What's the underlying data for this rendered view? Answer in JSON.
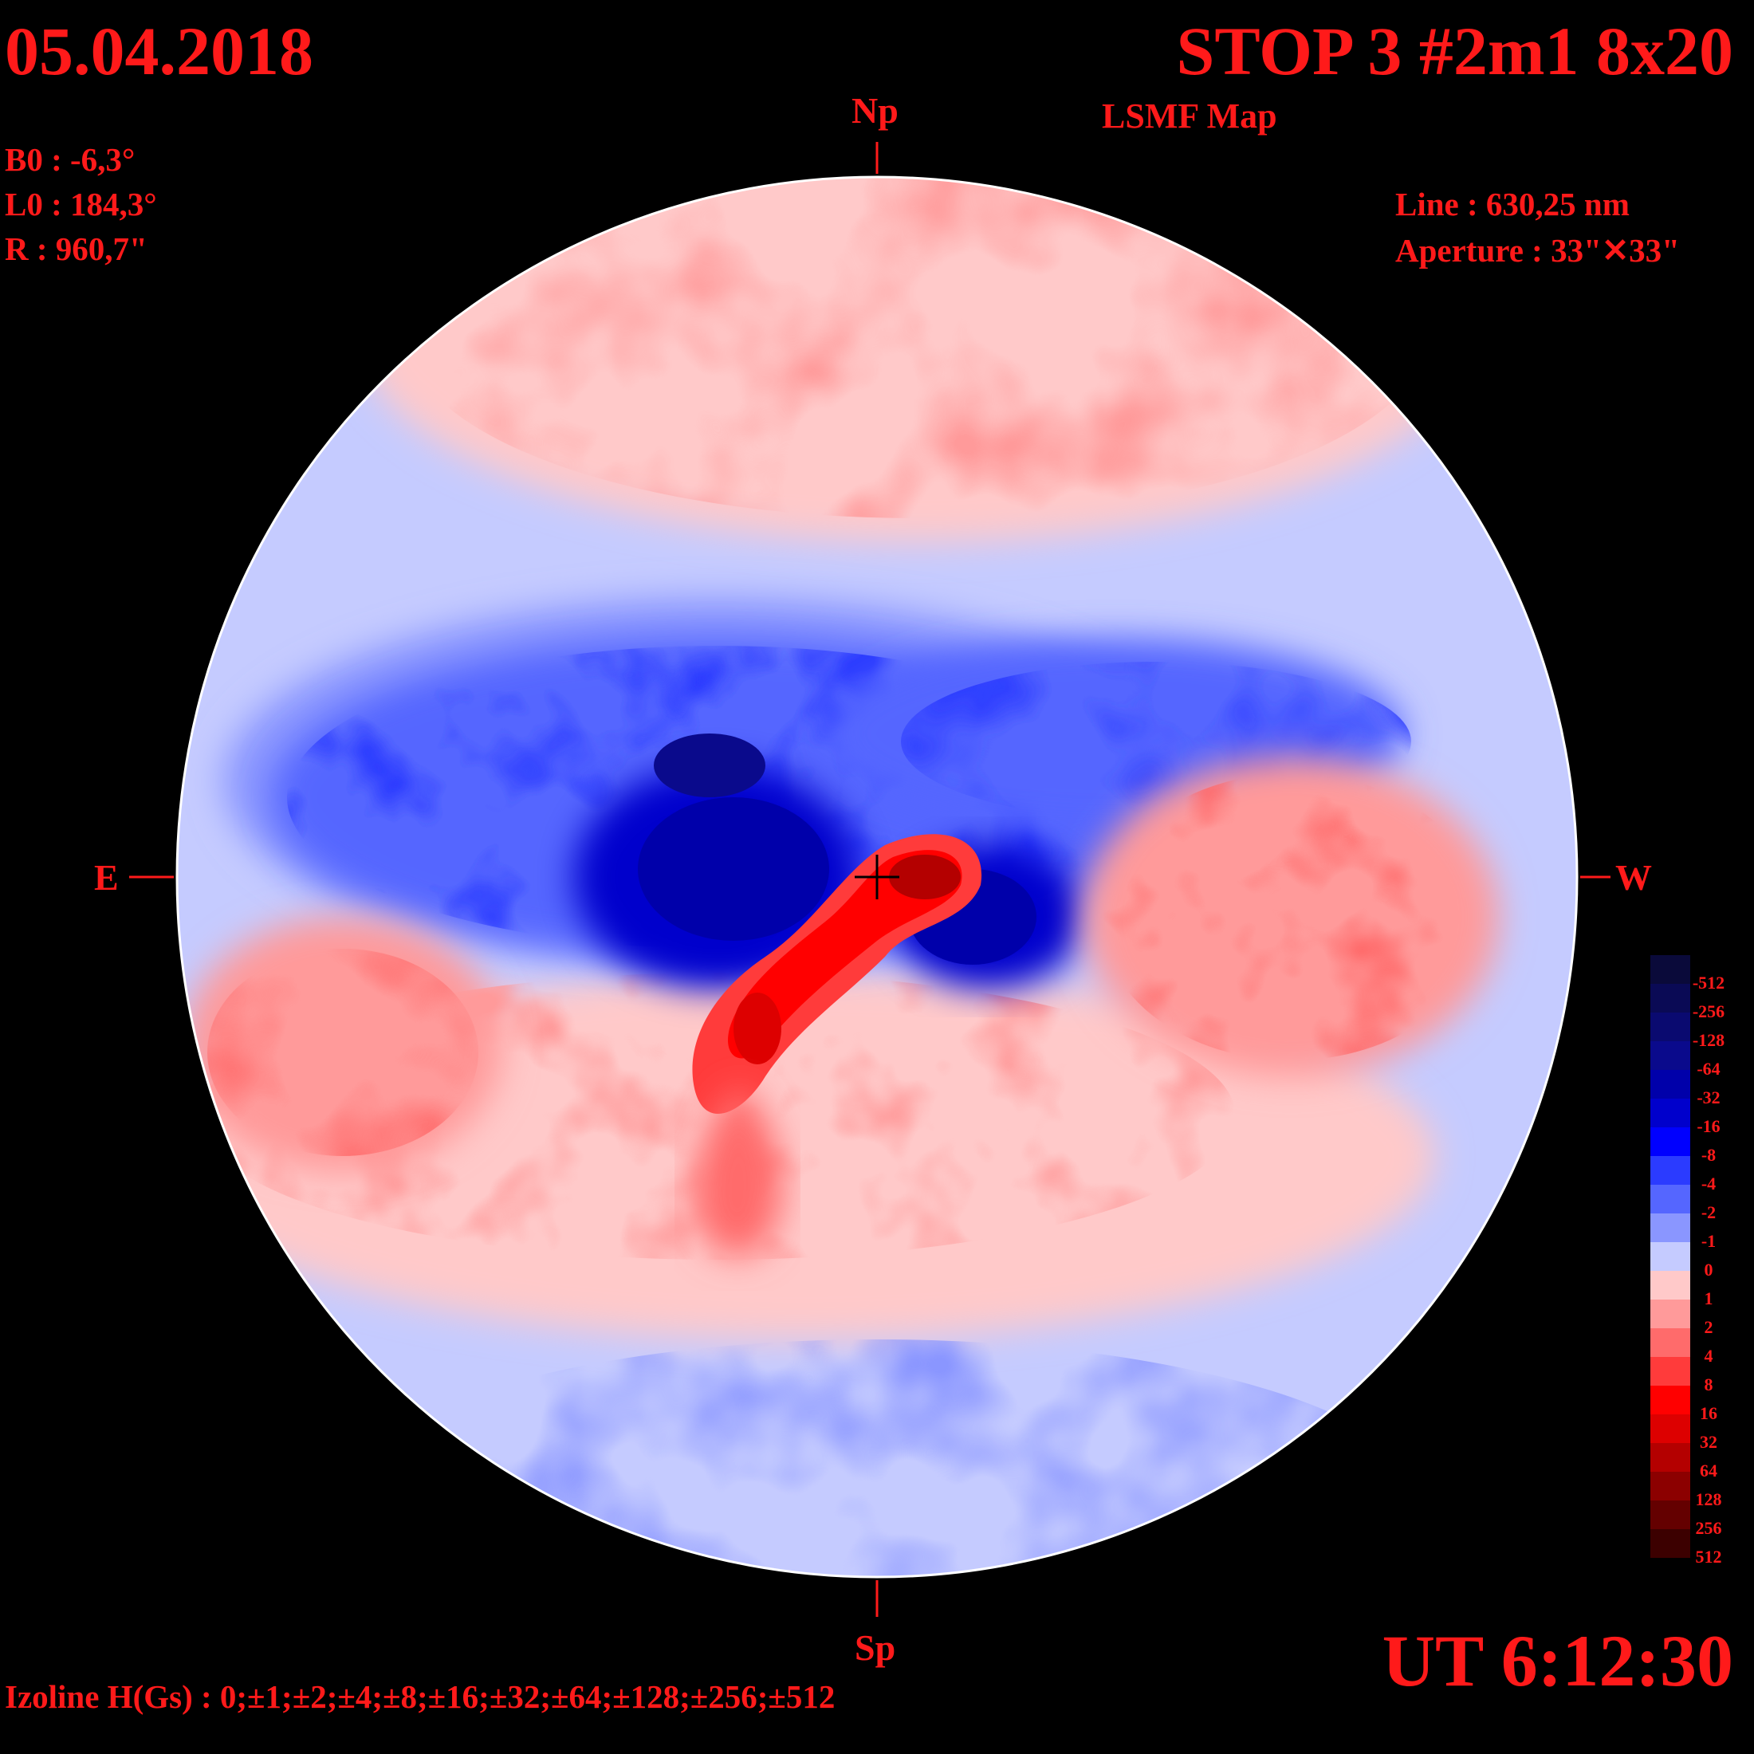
{
  "header": {
    "date": "05.04.2018",
    "title": "STOP 3 #2m1 8x20",
    "subtitle": "LSMF  Map"
  },
  "solar_params": {
    "b0": "B0 : -6,3°",
    "l0": "L0 : 184,3°",
    "r": "R  : 960,7\""
  },
  "instrument": {
    "line": "Line :  630,25 nm",
    "aperture": "Aperture : 33\"✕33\""
  },
  "directions": {
    "north": "Np",
    "south": "Sp",
    "east": "E",
    "west": "W"
  },
  "footer": {
    "ut": "UT 6:12:30",
    "izoline": "Izoline H(Gs) : 0;±1;±2;±4;±8;±16;±32;±64;±128;±256;±512"
  },
  "colorbar": {
    "labels": [
      "-512",
      "-256",
      "-128",
      "-64",
      "-32",
      "-16",
      "-8",
      "-4",
      "-2",
      "-1",
      "0",
      "1",
      "2",
      "4",
      "8",
      "16",
      "32",
      "64",
      "128",
      "256",
      "512"
    ],
    "colors": [
      "#0a0a3a",
      "#0a0a55",
      "#0a0a70",
      "#0a0a8c",
      "#0000aa",
      "#0000cc",
      "#0000ff",
      "#2b3bff",
      "#5566ff",
      "#8a96ff",
      "#c5cbff",
      "#ffc9c9",
      "#ff9a9a",
      "#ff6b6b",
      "#ff3b3b",
      "#ff0000",
      "#dd0000",
      "#b40000",
      "#8c0000",
      "#640000",
      "#3c0000"
    ]
  }
}
